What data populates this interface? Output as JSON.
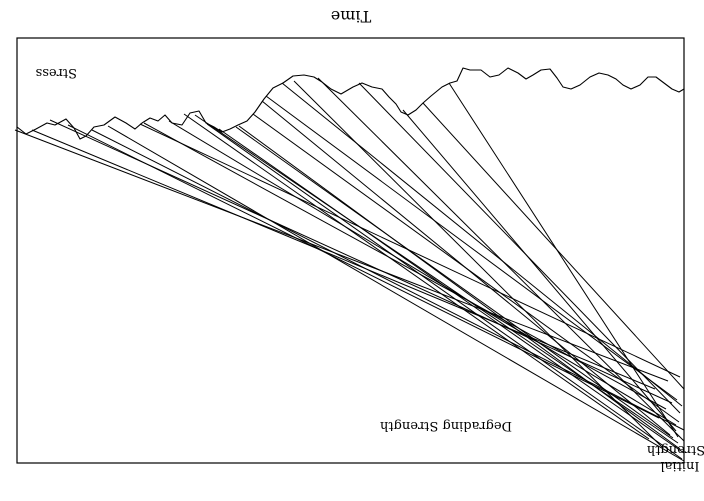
{
  "figure": {
    "orientation": "rotated 180 degrees (upside-down)",
    "x_axis_label": "Time",
    "labels": {
      "stress": "Stress",
      "degrading_strength": "Degrading  Strength",
      "initial_strength_line1": "Initial",
      "initial_strength_line2": "Strength"
    },
    "strength_line_count": 25,
    "colors": {
      "background": "#ffffff",
      "ink": "#000000"
    }
  }
}
